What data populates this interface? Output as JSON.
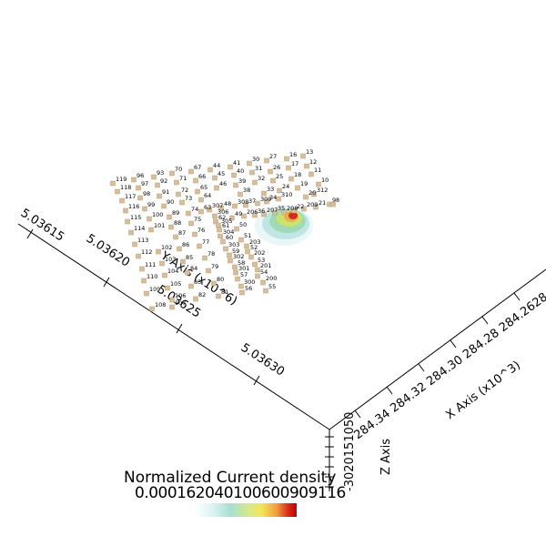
{
  "legend": {
    "title": "Normalized Current density",
    "tick_text": "0.000162040100600909116",
    "colors": [
      "#ffffff",
      "#d9f2f3",
      "#a6dfd2",
      "#d4e98b",
      "#f3e65c",
      "#f1a23c",
      "#d8281d",
      "#c00000"
    ]
  },
  "axes": {
    "y_axis": {
      "title": "Y Axis (x10^6)",
      "ticks": [
        "5.03615",
        "5.03620",
        "5.03625",
        "5.03630"
      ]
    },
    "x_axis": {
      "title": "X Axis (x10^3)",
      "tick_text": "284.34 284.32 284.30 284.28 284.26284.24284"
    },
    "z_axis": {
      "title": "Z Axis",
      "tick_text": "-3020151050"
    }
  },
  "electrodes": [
    {
      "id": "13"
    },
    {
      "id": "27"
    },
    {
      "id": "16"
    },
    {
      "id": "30"
    },
    {
      "id": "41"
    },
    {
      "id": "44"
    },
    {
      "id": "67"
    },
    {
      "id": "70"
    },
    {
      "id": "93"
    },
    {
      "id": "96"
    },
    {
      "id": "119"
    },
    {
      "id": "12"
    },
    {
      "id": "17"
    },
    {
      "id": "26"
    },
    {
      "id": "31"
    },
    {
      "id": "40"
    },
    {
      "id": "45"
    },
    {
      "id": "66"
    },
    {
      "id": "71"
    },
    {
      "id": "92"
    },
    {
      "id": "97"
    },
    {
      "id": "118"
    },
    {
      "id": "11"
    },
    {
      "id": "18"
    },
    {
      "id": "25"
    },
    {
      "id": "32"
    },
    {
      "id": "39"
    },
    {
      "id": "46"
    },
    {
      "id": "65"
    },
    {
      "id": "72"
    },
    {
      "id": "91"
    },
    {
      "id": "98"
    },
    {
      "id": "117"
    },
    {
      "id": "10"
    },
    {
      "id": "19"
    },
    {
      "id": "24"
    },
    {
      "id": "33"
    },
    {
      "id": "38"
    },
    {
      "id": "64"
    },
    {
      "id": "73"
    },
    {
      "id": "90"
    },
    {
      "id": "99"
    },
    {
      "id": "116"
    },
    {
      "id": "312"
    },
    {
      "id": "20"
    },
    {
      "id": "310"
    },
    {
      "id": "34"
    },
    {
      "id": "309"
    },
    {
      "id": "37"
    },
    {
      "id": "308"
    },
    {
      "id": "48"
    },
    {
      "id": "307"
    },
    {
      "id": "63"
    },
    {
      "id": "306"
    },
    {
      "id": "74"
    },
    {
      "id": "89"
    },
    {
      "id": "100"
    },
    {
      "id": "115"
    },
    {
      "id": "9"
    },
    {
      "id": "8"
    },
    {
      "id": "21"
    },
    {
      "id": "209"
    },
    {
      "id": "22"
    },
    {
      "id": "208"
    },
    {
      "id": "35"
    },
    {
      "id": "207"
    },
    {
      "id": "36"
    },
    {
      "id": "206"
    },
    {
      "id": "49"
    },
    {
      "id": "62"
    },
    {
      "id": "305"
    },
    {
      "id": "75"
    },
    {
      "id": "88"
    },
    {
      "id": "101"
    },
    {
      "id": "114"
    },
    {
      "id": "50"
    },
    {
      "id": "61"
    },
    {
      "id": "304"
    },
    {
      "id": "76"
    },
    {
      "id": "87"
    },
    {
      "id": "113"
    },
    {
      "id": "51"
    },
    {
      "id": "60"
    },
    {
      "id": "203"
    },
    {
      "id": "303"
    },
    {
      "id": "77"
    },
    {
      "id": "86"
    },
    {
      "id": "102"
    },
    {
      "id": "112"
    },
    {
      "id": "52"
    },
    {
      "id": "59"
    },
    {
      "id": "202"
    },
    {
      "id": "302"
    },
    {
      "id": "78"
    },
    {
      "id": "85"
    },
    {
      "id": "103"
    },
    {
      "id": "111"
    },
    {
      "id": "53"
    },
    {
      "id": "58"
    },
    {
      "id": "201"
    },
    {
      "id": "301"
    },
    {
      "id": "79"
    },
    {
      "id": "84"
    },
    {
      "id": "104"
    },
    {
      "id": "110"
    },
    {
      "id": "54"
    },
    {
      "id": "57"
    },
    {
      "id": "200"
    },
    {
      "id": "300"
    },
    {
      "id": "80"
    },
    {
      "id": "83"
    },
    {
      "id": "105"
    },
    {
      "id": "109"
    },
    {
      "id": "55"
    },
    {
      "id": "56"
    },
    {
      "id": "81"
    },
    {
      "id": "82"
    },
    {
      "id": "106"
    },
    {
      "id": "107"
    },
    {
      "id": "108"
    }
  ]
}
